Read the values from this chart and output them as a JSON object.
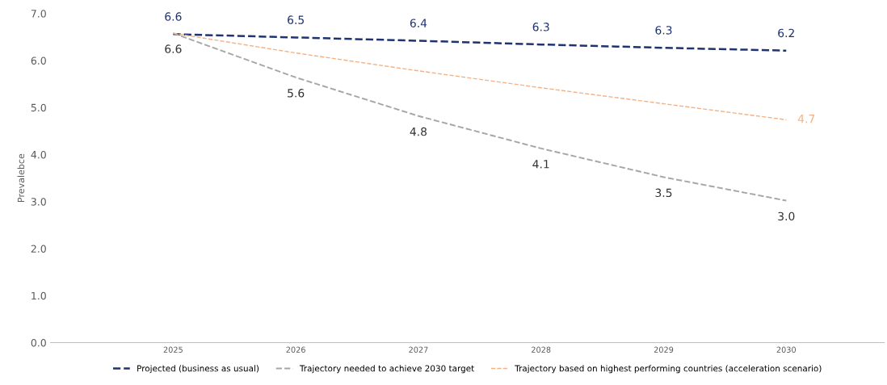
{
  "chart_data": {
    "type": "line",
    "ylabel": "Prevalebce",
    "categories": [
      "2025",
      "2026",
      "2027",
      "2028",
      "2029",
      "2030"
    ],
    "series": [
      {
        "name": "Projected (business as usual)",
        "color": "#1f3370",
        "values": [
          6.56,
          6.49,
          6.42,
          6.34,
          6.27,
          6.21
        ],
        "value_labels": [
          "6.6",
          "6.5",
          "6.4",
          "6.3",
          "6.3",
          "6.2"
        ]
      },
      {
        "name": "Trajectory needed to achieve 2030 target",
        "color": "#a6a6a6",
        "values": [
          6.58,
          5.64,
          4.82,
          4.13,
          3.52,
          3.02
        ],
        "value_labels": [
          "6.6",
          "5.6",
          "4.8",
          "4.1",
          "3.5",
          "3.0"
        ]
      },
      {
        "name": "Trajectory based on highest performing countries (acceleration scenario)",
        "color": "#f4b183",
        "values": [
          6.58,
          6.16,
          5.78,
          5.42,
          5.08,
          4.74
        ],
        "value_labels": [
          null,
          null,
          null,
          null,
          null,
          "4.7"
        ]
      }
    ],
    "ylim": [
      0,
      7
    ],
    "yticks": [
      {
        "value": 0,
        "label": "0.0"
      },
      {
        "value": 1,
        "label": "1.0"
      },
      {
        "value": 2,
        "label": "2.0"
      },
      {
        "value": 3,
        "label": "3.0"
      },
      {
        "value": 4,
        "label": "4.0"
      },
      {
        "value": 5,
        "label": "5.0"
      },
      {
        "value": 6,
        "label": "6.0"
      },
      {
        "value": 7,
        "label": "7.0"
      }
    ],
    "grid": false,
    "legend": "bottom",
    "line_style": "dashed",
    "marker": "none"
  }
}
